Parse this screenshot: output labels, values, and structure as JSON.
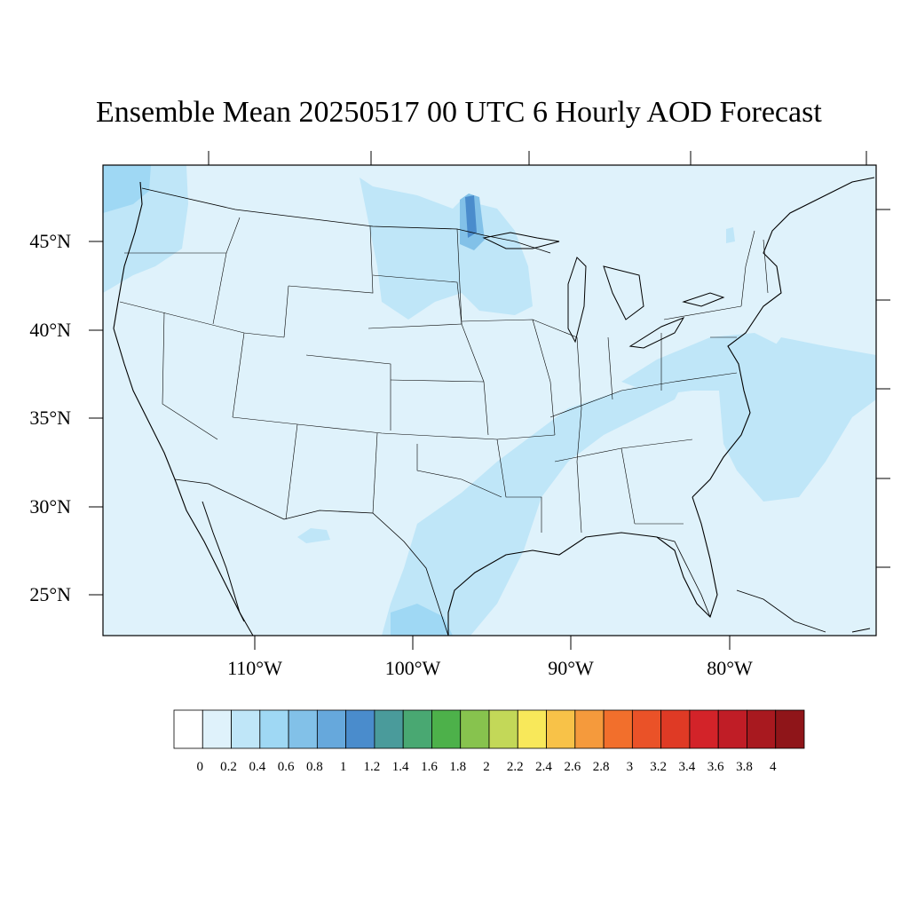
{
  "title": "Ensemble Mean 20250517 00 UTC 6 Hourly AOD Forecast",
  "map": {
    "lat_labels": [
      "45°N",
      "40°N",
      "35°N",
      "30°N",
      "25°N"
    ],
    "lon_labels": [
      "110°W",
      "100°W",
      "90°W",
      "80°W"
    ],
    "background_color": "#dff2fb"
  },
  "colorbar": {
    "colors": [
      "#ffffff",
      "#dff2fb",
      "#bfe6f8",
      "#9fd8f4",
      "#82c1e8",
      "#66a8dc",
      "#4a8ccc",
      "#4a9b9b",
      "#49a872",
      "#4db14a",
      "#87c34e",
      "#c3d858",
      "#f8e85a",
      "#f8c248",
      "#f59a3c",
      "#f26f2c",
      "#ea5228",
      "#df3a25",
      "#d32329",
      "#c01d26",
      "#a8191f",
      "#8f1519"
    ],
    "labels": [
      "0",
      "0.2",
      "0.4",
      "0.6",
      "0.8",
      "1",
      "1.2",
      "1.4",
      "1.6",
      "1.8",
      "2",
      "2.2",
      "2.4",
      "2.6",
      "2.8",
      "3",
      "3.2",
      "3.4",
      "3.6",
      "3.8",
      "4"
    ]
  }
}
